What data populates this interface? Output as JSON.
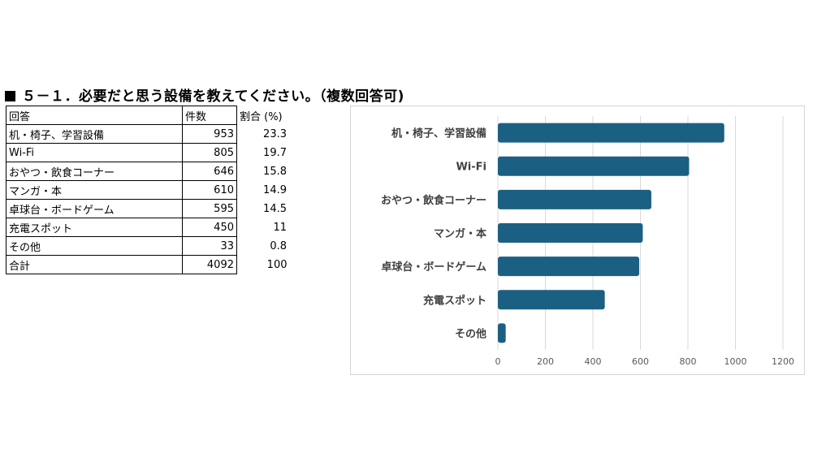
{
  "heading": "５－１．必要だと思う設備を教えてください。（複数回答可)",
  "table": {
    "headers": [
      "回答",
      "件数",
      "割合 (%)"
    ],
    "rows": [
      [
        "机・椅子、学習設備",
        "953",
        "23.3"
      ],
      [
        "Wi-Fi",
        "805",
        "19.7"
      ],
      [
        "おやつ・飲食コーナー",
        "646",
        "15.8"
      ],
      [
        "マンガ・本",
        "610",
        "14.9"
      ],
      [
        "卓球台・ボードゲーム",
        "595",
        "14.5"
      ],
      [
        "充電スポット",
        "450",
        "11"
      ],
      [
        "その他",
        "33",
        "0.8"
      ],
      [
        "合計",
        "4092",
        "100"
      ]
    ]
  },
  "chart_data": {
    "type": "bar",
    "orientation": "horizontal",
    "categories": [
      "机・椅子、学習設備",
      "Wi-Fi",
      "おやつ・飲食コーナー",
      "マンガ・本",
      "卓球台・ボードゲーム",
      "充電スポット",
      "その他"
    ],
    "values": [
      953,
      805,
      646,
      610,
      595,
      450,
      33
    ],
    "xlim": [
      0,
      1200
    ],
    "xticks": [
      0,
      200,
      400,
      600,
      800,
      1000,
      1200
    ],
    "bar_color": "#1b6083",
    "grid": true,
    "legend": "none"
  }
}
